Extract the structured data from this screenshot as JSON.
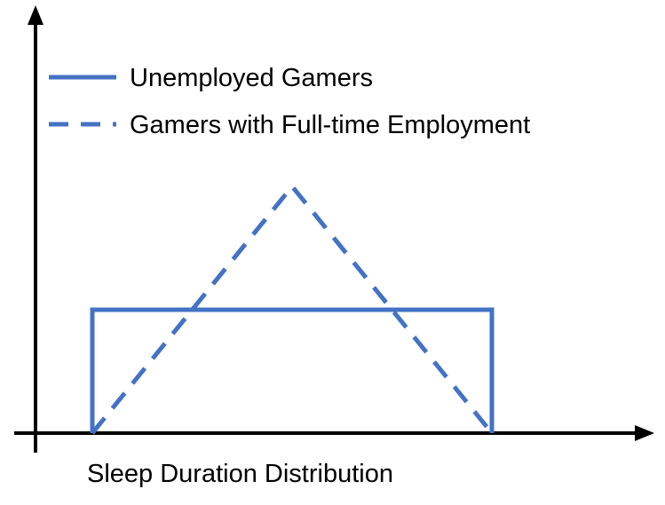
{
  "colors": {
    "series": "#4472c4",
    "axis": "#000000"
  },
  "legend": [
    {
      "label": "Unemployed Gamers",
      "style": "solid"
    },
    {
      "label": "Gamers with Full-time Employment",
      "style": "dashed"
    }
  ],
  "x_caption": "Sleep Duration Distribution",
  "chart_data": {
    "type": "line",
    "title": "",
    "xlabel": "Sleep Duration Distribution",
    "ylabel": "",
    "legend_placement": "top-left",
    "grid": false,
    "xlim": [
      0,
      10
    ],
    "ylim": [
      0,
      10
    ],
    "series": [
      {
        "name": "Unemployed Gamers",
        "line_style": "solid",
        "x": [
          0,
          0,
          10,
          10
        ],
        "y": [
          0,
          5,
          5,
          0
        ]
      },
      {
        "name": "Gamers with Full-time Employment",
        "line_style": "dashed",
        "x": [
          0,
          5,
          10
        ],
        "y": [
          0,
          10,
          0
        ]
      }
    ]
  }
}
